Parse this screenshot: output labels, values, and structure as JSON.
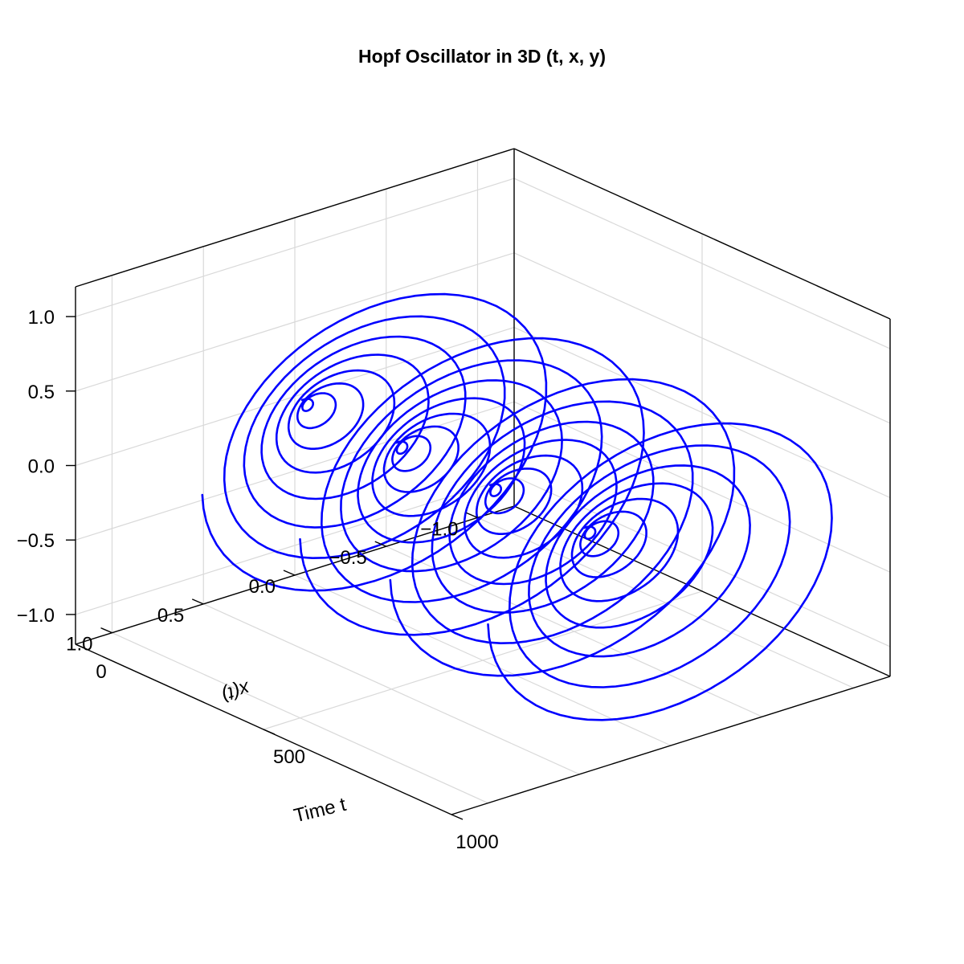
{
  "chart_data": {
    "type": "line",
    "projection": "3d",
    "title": "Hopf Oscillator in 3D (t, x, y)",
    "xlabel": "Time t",
    "ylabel": "x(t)",
    "zlabel": "",
    "xlim": [
      0,
      1000
    ],
    "ylim": [
      -1.2,
      1.2
    ],
    "zlim": [
      -1.2,
      1.2
    ],
    "x_ticks": [
      {
        "value": 0,
        "label": "0"
      },
      {
        "value": 500,
        "label": "500"
      },
      {
        "value": 1000,
        "label": "1000"
      }
    ],
    "y_ticks": [
      {
        "value": 1.0,
        "label": "1.0"
      },
      {
        "value": 0.5,
        "label": "0.5"
      },
      {
        "value": 0.0,
        "label": "0.0"
      },
      {
        "value": -0.5,
        "label": "−0.5"
      },
      {
        "value": -1.0,
        "label": "−1.0"
      }
    ],
    "z_ticks": [
      {
        "value": 1.0,
        "label": "1.0"
      },
      {
        "value": 0.5,
        "label": "0.5"
      },
      {
        "value": 0.0,
        "label": "0.0"
      },
      {
        "value": -0.5,
        "label": "−0.5"
      },
      {
        "value": -1.0,
        "label": "−1.0"
      }
    ],
    "grid": true,
    "series": [
      {
        "color": "#0000ff",
        "segments": [
          {
            "t_start": 20,
            "t_end": 240,
            "max_radius": 1.0,
            "turns": 8,
            "t_step": 5,
            "start": [
              0,
              0
            ]
          },
          {
            "t_start": 270,
            "t_end": 500,
            "max_radius": 1.0,
            "turns": 8,
            "t_step": 5,
            "start": [
              0,
              0
            ]
          },
          {
            "t_start": 520,
            "t_end": 740,
            "max_radius": 1.0,
            "turns": 8,
            "t_step": 5,
            "start": [
              0,
              0
            ]
          },
          {
            "t_start": 770,
            "t_end": 1000,
            "max_radius": 1.0,
            "turns": 8,
            "t_step": 5,
            "start": [
              0,
              0
            ]
          }
        ]
      }
    ]
  }
}
